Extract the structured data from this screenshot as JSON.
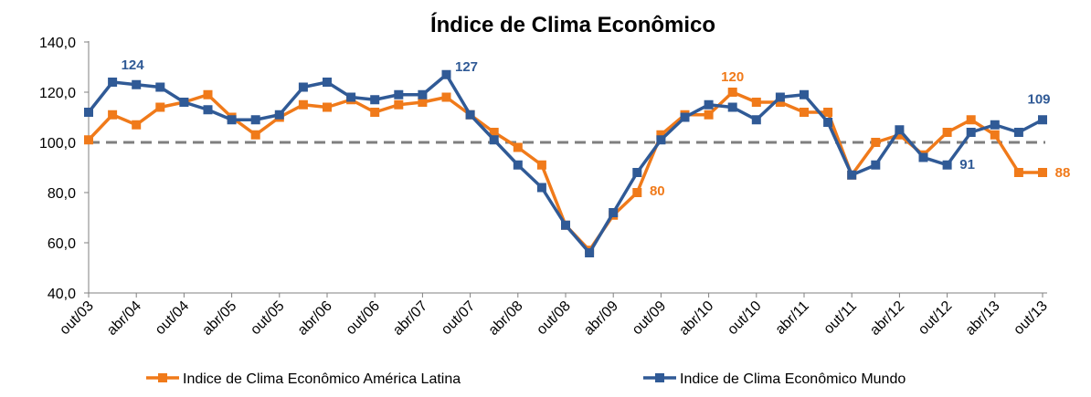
{
  "chart_data": {
    "type": "line",
    "title": "Índice de Clima Econômico",
    "ylim": [
      40,
      140
    ],
    "yticks": [
      "40,0",
      "60,0",
      "80,0",
      "100,0",
      "120,0",
      "140,0"
    ],
    "ytick_values": [
      40,
      60,
      80,
      100,
      120,
      140
    ],
    "xtick_labels": [
      "out/03",
      "abr/04",
      "out/04",
      "abr/05",
      "out/05",
      "abr/06",
      "out/06",
      "abr/07",
      "out/07",
      "abr/08",
      "out/08",
      "abr/09",
      "out/09",
      "abr/10",
      "out/10",
      "abr/11",
      "out/11",
      "abr/12",
      "out/12",
      "abr/13",
      "out/13"
    ],
    "reference_line": 100,
    "grid": false,
    "legend": "bottom",
    "series": [
      {
        "name": "Indice de Clima Econômico América Latina",
        "color": "#f07a1a",
        "values": [
          101,
          111,
          107,
          114,
          116,
          119,
          110,
          103,
          110,
          115,
          114,
          117,
          112,
          115,
          116,
          118,
          111,
          104,
          98,
          91,
          67,
          57,
          71,
          80,
          103,
          111,
          111,
          120,
          116,
          116,
          112,
          112,
          87,
          100,
          103,
          95,
          104,
          109,
          103,
          88,
          88
        ]
      },
      {
        "name": "Indice de Clima Econômico Mundo",
        "color": "#305a96",
        "values": [
          112,
          124,
          123,
          122,
          116,
          113,
          109,
          109,
          111,
          122,
          124,
          118,
          117,
          119,
          119,
          127,
          111,
          101,
          91,
          82,
          67,
          56,
          72,
          88,
          101,
          110,
          115,
          114,
          109,
          118,
          119,
          108,
          87,
          91,
          105,
          94,
          91,
          104,
          107,
          104,
          109
        ]
      }
    ],
    "annotations": [
      {
        "text": "124",
        "series": 1,
        "index": 1,
        "color": "#305a96"
      },
      {
        "text": "127",
        "series": 1,
        "index": 15,
        "color": "#305a96"
      },
      {
        "text": "80",
        "series": 0,
        "index": 23,
        "color": "#f07a1a"
      },
      {
        "text": "120",
        "series": 0,
        "index": 27,
        "color": "#f07a1a"
      },
      {
        "text": "91",
        "series": 1,
        "index": 36,
        "color": "#305a96"
      },
      {
        "text": "109",
        "series": 1,
        "index": 40,
        "color": "#305a96"
      },
      {
        "text": "88",
        "series": 0,
        "index": 40,
        "color": "#f07a1a"
      }
    ]
  }
}
